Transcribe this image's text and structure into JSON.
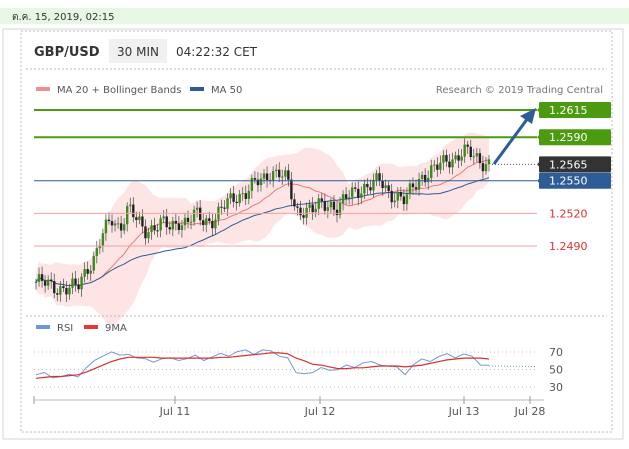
{
  "timestamp": "ต.ค. 15, 2019, 02:15",
  "header": {
    "pair": "GBP/USD",
    "timeframe": "30 MIN",
    "time": "04:22:32 CET"
  },
  "legend": {
    "ma20": "MA 20 + Bollinger Bands",
    "ma50": "MA 50",
    "credit": "Research © 2019 Trading Central"
  },
  "rsi_legend": {
    "rsi": "RSI",
    "ma9": "9MA"
  },
  "colors": {
    "green": "#4c9a10",
    "blue": "#2d5c97",
    "red": "#e66",
    "dark": "#333333",
    "band": "#fbd0d0",
    "rsi": "#6f97d6",
    "rsi_ma": "#d9302c"
  },
  "chart_data": {
    "type": "candlestick",
    "x_ticks": [
      "Jul 11",
      "Jul 12",
      "Jul 13",
      "Jul 28"
    ],
    "levels": [
      {
        "label": "1.2615",
        "value": 1.2615,
        "style": "green"
      },
      {
        "label": "1.2590",
        "value": 1.259,
        "style": "green"
      },
      {
        "label": "1.2565",
        "value": 1.2565,
        "style": "dark"
      },
      {
        "label": "1.2550",
        "value": 1.255,
        "style": "blue"
      },
      {
        "label": "1.2520",
        "value": 1.252,
        "style": "red"
      },
      {
        "label": "1.2490",
        "value": 1.249,
        "style": "red"
      }
    ],
    "price_path": [
      1.2457,
      1.2455,
      1.2453,
      1.2452,
      1.245,
      1.2452,
      1.247,
      1.248,
      1.25,
      1.2515,
      1.2508,
      1.2525,
      1.2512,
      1.2505,
      1.2508,
      1.251,
      1.2506,
      1.2514,
      1.2512,
      1.2518,
      1.2513,
      1.2515,
      1.2522,
      1.253,
      1.2537,
      1.254,
      1.2546,
      1.255,
      1.256,
      1.2557,
      1.2548,
      1.2522,
      1.2525,
      1.2522,
      1.2527,
      1.253,
      1.2525,
      1.2533,
      1.254,
      1.2545,
      1.2546,
      1.2549,
      1.254,
      1.2537,
      1.253,
      1.2545,
      1.2555,
      1.2558,
      1.2562,
      1.257,
      1.2572,
      1.2576,
      1.2573,
      1.2569,
      1.2566
    ],
    "rsi_ticks": [
      70,
      50,
      30
    ],
    "rsi_values": [
      44,
      44,
      43,
      42,
      42,
      44,
      52,
      58,
      68,
      70,
      64,
      70,
      63,
      60,
      61,
      62,
      61,
      63,
      62,
      64,
      63,
      64,
      66,
      68,
      70,
      70,
      70,
      72,
      69,
      68,
      63,
      44,
      48,
      46,
      50,
      52,
      49,
      53,
      55,
      57,
      57,
      58,
      53,
      51,
      47,
      55,
      60,
      62,
      64,
      66,
      66,
      67,
      63,
      58,
      54
    ],
    "rsi_ma_values": [
      40,
      41,
      42,
      42,
      43,
      44,
      47,
      51,
      55,
      59,
      62,
      64,
      64,
      64,
      64,
      63,
      63,
      63,
      63,
      63,
      63,
      63,
      64,
      64,
      65,
      66,
      67,
      68,
      69,
      69,
      68,
      63,
      60,
      56,
      55,
      53,
      51,
      51,
      52,
      52,
      53,
      54,
      54,
      54,
      53,
      54,
      55,
      57,
      59,
      61,
      62,
      63,
      63,
      63,
      62
    ]
  }
}
